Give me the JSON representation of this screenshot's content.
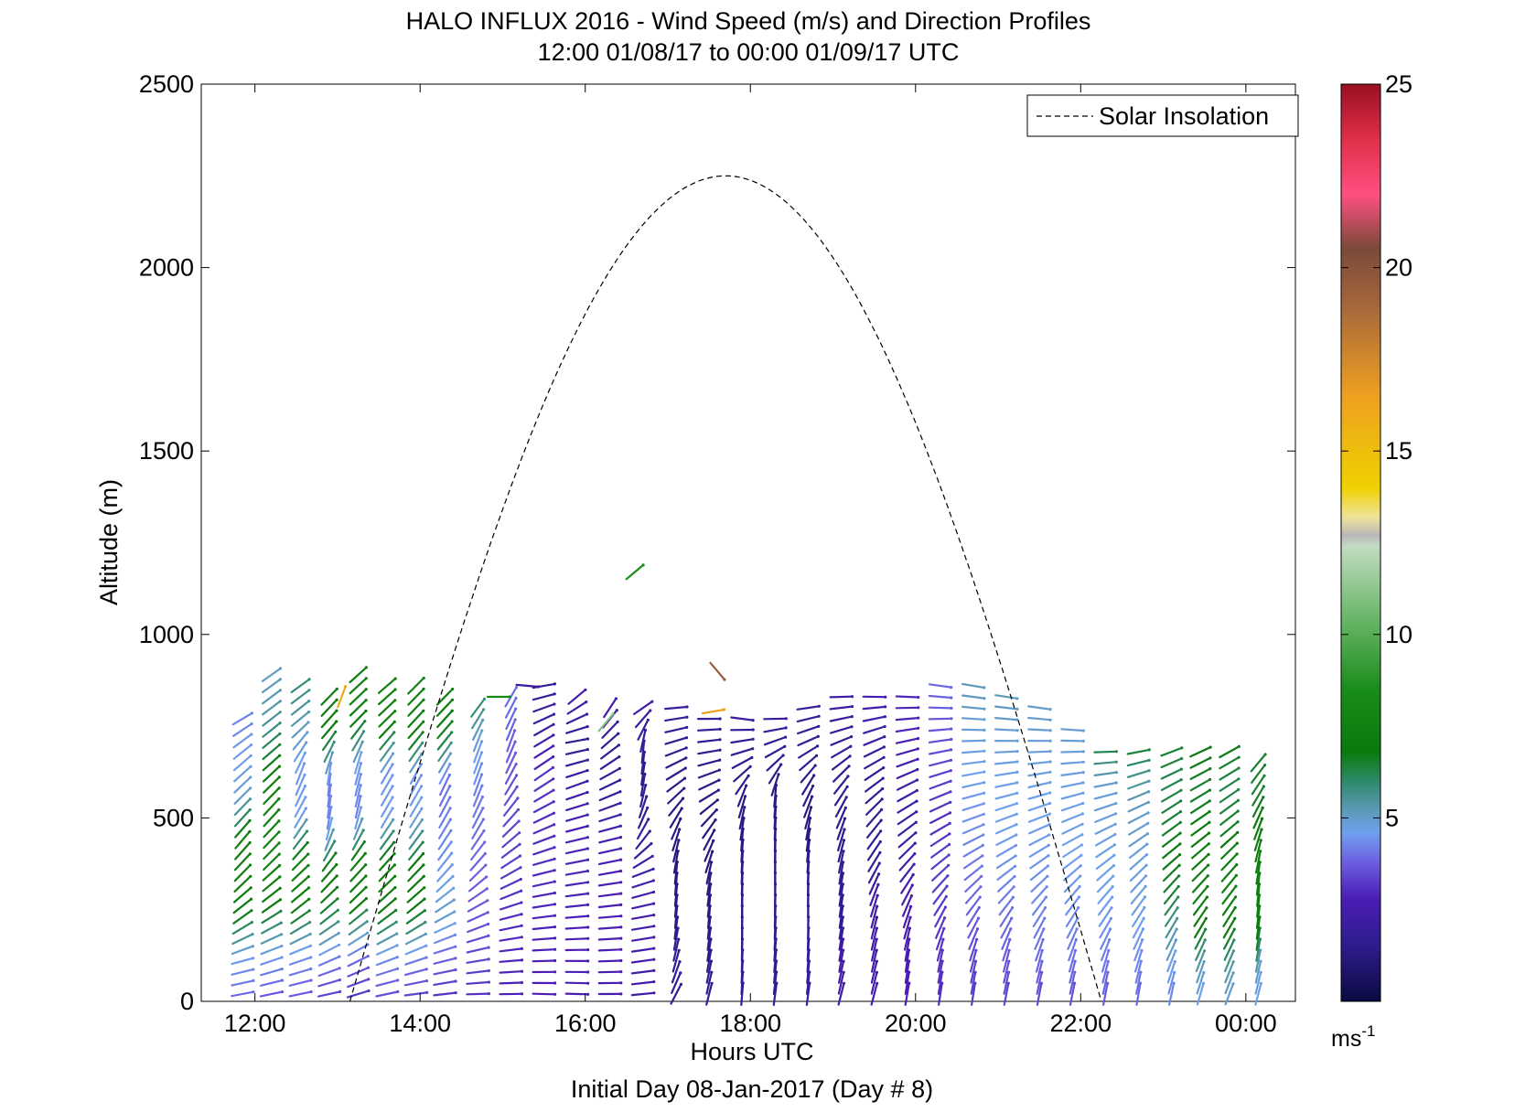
{
  "chart_data": {
    "type": "wind-barb-profile",
    "title": "HALO INFLUX 2016 - Wind Speed (m/s) and Direction Profiles",
    "subtitle": "12:00 01/08/17 to 00:00 01/09/17  UTC",
    "xlabel": "Hours UTC",
    "ylabel": "Altitude (m)",
    "footer": "Initial Day 08-Jan-2017 (Day # 8)",
    "xlim_hours": [
      11.35,
      24.6
    ],
    "ylim": [
      0,
      2500
    ],
    "x_ticks": [
      {
        "h": 12,
        "label": "12:00"
      },
      {
        "h": 14,
        "label": "14:00"
      },
      {
        "h": 16,
        "label": "16:00"
      },
      {
        "h": 18,
        "label": "18:00"
      },
      {
        "h": 20,
        "label": "20:00"
      },
      {
        "h": 22,
        "label": "22:00"
      },
      {
        "h": 24,
        "label": "00:00"
      }
    ],
    "y_ticks": [
      0,
      500,
      1000,
      1500,
      2000,
      2500
    ],
    "legend": {
      "label": "Solar Insolation",
      "position": "top-right",
      "style": "dashed"
    },
    "solar_insolation": {
      "rise_h": 13.15,
      "set_h": 22.25,
      "peak_h": 17.7,
      "peak_alt": 2250
    },
    "colorbar": {
      "min": 0,
      "max": 25,
      "ticks": [
        5,
        10,
        15,
        20,
        25
      ],
      "unit": "ms",
      "unit_exp": "-1",
      "stops": [
        {
          "v": 0,
          "c": "#0a0a40"
        },
        {
          "v": 1.5,
          "c": "#2d1c8c"
        },
        {
          "v": 2.8,
          "c": "#4b1db6"
        },
        {
          "v": 3.8,
          "c": "#6b60e0"
        },
        {
          "v": 4.6,
          "c": "#6fa0ef"
        },
        {
          "v": 5.2,
          "c": "#5c9ab8"
        },
        {
          "v": 6.0,
          "c": "#2e8a6a"
        },
        {
          "v": 6.8,
          "c": "#0a7a0a"
        },
        {
          "v": 8.5,
          "c": "#1a8c1a"
        },
        {
          "v": 10.5,
          "c": "#6cb86c"
        },
        {
          "v": 12.4,
          "c": "#c2dcc2"
        },
        {
          "v": 12.7,
          "c": "#b8b8b8"
        },
        {
          "v": 13.2,
          "c": "#efe39a"
        },
        {
          "v": 14.0,
          "c": "#f0d200"
        },
        {
          "v": 16.5,
          "c": "#eda020"
        },
        {
          "v": 19.0,
          "c": "#a5663c"
        },
        {
          "v": 20.5,
          "c": "#7a4a3a"
        },
        {
          "v": 22.0,
          "c": "#ff4f80"
        },
        {
          "v": 23.5,
          "c": "#e0304a"
        },
        {
          "v": 25,
          "c": "#9a0e22"
        }
      ]
    },
    "columns": [
      {
        "h": 11.85,
        "top": 780,
        "spd": [
          3.8,
          4.5,
          6.5,
          7.5,
          7.2,
          5.0,
          4.6,
          4.2
        ],
        "dir": [
          100,
          105,
          125,
          135,
          140,
          135,
          130,
          120
        ]
      },
      {
        "h": 12.2,
        "top": 900,
        "spd": [
          3.5,
          4.6,
          6.8,
          7.6,
          7.4,
          6.8,
          5.5,
          5.0
        ],
        "dir": [
          100,
          110,
          125,
          135,
          138,
          132,
          128,
          125
        ]
      },
      {
        "h": 12.55,
        "top": 880,
        "spd": [
          3.6,
          4.4,
          6.9,
          7.4,
          4.6,
          4.5,
          5.2,
          6.0
        ],
        "dir": [
          100,
          110,
          128,
          135,
          150,
          160,
          130,
          125
        ]
      },
      {
        "h": 12.9,
        "top": 850,
        "spd": [
          3.2,
          4.2,
          6.5,
          7.0,
          4.3,
          4.2,
          6.8,
          7.2
        ],
        "dir": [
          100,
          115,
          130,
          140,
          170,
          175,
          140,
          135
        ]
      },
      {
        "h": 13.25,
        "top": 900,
        "spd": [
          3.0,
          4.0,
          6.8,
          7.2,
          4.2,
          4.5,
          7.0,
          7.5
        ],
        "dir": [
          105,
          118,
          132,
          140,
          168,
          165,
          135,
          132
        ]
      },
      {
        "h": 13.6,
        "top": 880,
        "spd": [
          3.4,
          4.4,
          7.0,
          7.3,
          4.6,
          4.4,
          7.2,
          7.5
        ],
        "dir": [
          100,
          112,
          130,
          138,
          150,
          150,
          135,
          130
        ]
      },
      {
        "h": 13.95,
        "top": 860,
        "spd": [
          3.2,
          4.2,
          6.8,
          7.0,
          4.8,
          4.3,
          7.2,
          7.4
        ],
        "dir": [
          95,
          110,
          128,
          138,
          148,
          152,
          138,
          135
        ]
      },
      {
        "h": 14.3,
        "top": 840,
        "spd": [
          3.0,
          3.8,
          5.0,
          4.5,
          4.2,
          4.0,
          6.5,
          7.2
        ],
        "dir": [
          95,
          105,
          120,
          140,
          150,
          155,
          140,
          135
        ]
      },
      {
        "h": 14.7,
        "top": 820,
        "spd": [
          3.0,
          3.4,
          3.6,
          3.8,
          4.0,
          4.2,
          4.8,
          6.0
        ],
        "dir": [
          90,
          100,
          115,
          135,
          150,
          160,
          160,
          140
        ]
      },
      {
        "h": 15.1,
        "top": 830,
        "spd": [
          2.8,
          2.9,
          3.0,
          3.2,
          3.4,
          3.6,
          3.8,
          4.0
        ],
        "dir": [
          90,
          95,
          105,
          120,
          135,
          150,
          160,
          150
        ]
      },
      {
        "h": 15.5,
        "top": 860,
        "spd": [
          2.8,
          2.8,
          2.9,
          3.0,
          3.0,
          3.1,
          2.2,
          1.8
        ],
        "dir": [
          88,
          92,
          98,
          105,
          115,
          125,
          120,
          100
        ]
      },
      {
        "h": 15.9,
        "top": 830,
        "spd": [
          2.7,
          2.8,
          2.8,
          2.9,
          2.8,
          2.2,
          1.6,
          2.5
        ],
        "dir": [
          88,
          90,
          95,
          100,
          105,
          110,
          100,
          130
        ]
      },
      {
        "h": 16.3,
        "top": 820,
        "spd": [
          2.6,
          2.7,
          2.8,
          2.8,
          2.5,
          1.9,
          1.8,
          2.6
        ],
        "dir": [
          90,
          92,
          95,
          100,
          105,
          115,
          130,
          150
        ]
      },
      {
        "h": 16.7,
        "top": 810,
        "spd": [
          2.2,
          2.4,
          2.5,
          2.4,
          2.0,
          1.6,
          1.8,
          2.5
        ],
        "dir": [
          95,
          98,
          100,
          110,
          150,
          170,
          175,
          120
        ]
      },
      {
        "h": 17.1,
        "top": 800,
        "spd": [
          1.8,
          1.6,
          1.4,
          1.2,
          1.2,
          1.4,
          1.6,
          2.0
        ],
        "dir": [
          150,
          165,
          175,
          175,
          160,
          130,
          110,
          95
        ]
      },
      {
        "h": 17.5,
        "top": 790,
        "spd": [
          1.8,
          1.5,
          1.4,
          1.2,
          1.2,
          1.3,
          1.5,
          2.0
        ],
        "dir": [
          165,
          170,
          175,
          170,
          150,
          120,
          100,
          88
        ]
      },
      {
        "h": 17.9,
        "top": 780,
        "spd": [
          1.8,
          1.6,
          1.4,
          1.3,
          1.3,
          1.4,
          1.6,
          2.2
        ],
        "dir": [
          175,
          178,
          180,
          178,
          175,
          160,
          110,
          80
        ]
      },
      {
        "h": 18.3,
        "top": 790,
        "spd": [
          2.0,
          1.7,
          1.5,
          1.4,
          1.3,
          1.4,
          1.6,
          2.2
        ],
        "dir": [
          172,
          175,
          178,
          180,
          178,
          175,
          120,
          85
        ]
      },
      {
        "h": 18.7,
        "top": 820,
        "spd": [
          2.2,
          1.9,
          1.6,
          1.4,
          1.3,
          1.4,
          1.8,
          2.2
        ],
        "dir": [
          172,
          176,
          180,
          178,
          170,
          150,
          115,
          95
        ]
      },
      {
        "h": 19.1,
        "top": 840,
        "spd": [
          2.4,
          2.2,
          1.8,
          1.6,
          1.5,
          1.6,
          2.0,
          2.3
        ],
        "dir": [
          165,
          170,
          172,
          170,
          160,
          140,
          110,
          90
        ]
      },
      {
        "h": 19.5,
        "top": 850,
        "spd": [
          2.6,
          2.4,
          2.2,
          2.0,
          1.8,
          1.8,
          2.2,
          2.6
        ],
        "dir": [
          165,
          168,
          165,
          150,
          140,
          125,
          110,
          85
        ]
      },
      {
        "h": 19.9,
        "top": 850,
        "spd": [
          2.8,
          2.7,
          2.6,
          2.4,
          2.2,
          2.4,
          2.8,
          3.0
        ],
        "dir": [
          170,
          172,
          160,
          140,
          125,
          115,
          100,
          85
        ]
      },
      {
        "h": 20.3,
        "top": 860,
        "spd": [
          3.0,
          3.1,
          3.2,
          3.3,
          3.0,
          3.3,
          3.6,
          3.9
        ],
        "dir": [
          172,
          168,
          150,
          130,
          118,
          108,
          95,
          82
        ]
      },
      {
        "h": 20.7,
        "top": 870,
        "spd": [
          3.2,
          3.4,
          3.8,
          4.1,
          4.4,
          4.6,
          4.9,
          5.2
        ],
        "dir": [
          172,
          165,
          145,
          125,
          110,
          100,
          88,
          80
        ]
      },
      {
        "h": 21.1,
        "top": 850,
        "spd": [
          3.3,
          3.7,
          4.0,
          4.4,
          4.6,
          4.7,
          4.9,
          5.2
        ],
        "dir": [
          170,
          165,
          145,
          125,
          112,
          100,
          88,
          80
        ]
      },
      {
        "h": 21.5,
        "top": 800,
        "spd": [
          3.4,
          3.9,
          4.2,
          4.4,
          4.5,
          4.7,
          4.8,
          5.0
        ],
        "dir": [
          170,
          165,
          148,
          130,
          115,
          105,
          92,
          82
        ]
      },
      {
        "h": 21.9,
        "top": 750,
        "spd": [
          3.5,
          4.0,
          4.3,
          4.5,
          4.6,
          4.7,
          4.8,
          4.9
        ],
        "dir": [
          170,
          165,
          150,
          135,
          120,
          108,
          95,
          85
        ]
      },
      {
        "h": 22.3,
        "top": 700,
        "spd": [
          3.6,
          4.1,
          4.4,
          4.6,
          4.7,
          4.8,
          5.0,
          6.5
        ],
        "dir": [
          170,
          165,
          150,
          138,
          125,
          112,
          100,
          90
        ]
      },
      {
        "h": 22.7,
        "top": 690,
        "spd": [
          3.8,
          4.3,
          4.6,
          4.8,
          4.8,
          5.0,
          5.4,
          6.5
        ],
        "dir": [
          172,
          165,
          152,
          140,
          130,
          118,
          110,
          100
        ]
      },
      {
        "h": 23.1,
        "top": 690,
        "spd": [
          4.2,
          4.6,
          5.5,
          6.5,
          6.8,
          6.5,
          6.2,
          6.5
        ],
        "dir": [
          170,
          160,
          150,
          140,
          130,
          125,
          118,
          110
        ]
      },
      {
        "h": 23.45,
        "top": 680,
        "spd": [
          4.5,
          5.2,
          6.8,
          7.2,
          7.0,
          6.8,
          6.5,
          6.8
        ],
        "dir": [
          165,
          160,
          150,
          140,
          132,
          125,
          120,
          115
        ]
      },
      {
        "h": 23.8,
        "top": 700,
        "spd": [
          4.8,
          5.5,
          7.0,
          7.4,
          7.0,
          6.5,
          6.2,
          6.8
        ],
        "dir": [
          160,
          158,
          150,
          142,
          135,
          128,
          122,
          118
        ]
      },
      {
        "h": 24.15,
        "top": 650,
        "spd": [
          4.5,
          5.0,
          6.8,
          7.2,
          7.4,
          7.0,
          6.5,
          6.5
        ],
        "dir": [
          165,
          168,
          172,
          175,
          170,
          160,
          150,
          140
        ]
      }
    ],
    "extras": [
      {
        "h": 16.6,
        "alt": 1170,
        "spd": 8.5,
        "dir": 130
      },
      {
        "h": 17.6,
        "alt": 900,
        "spd": 19.5,
        "dir": 40
      },
      {
        "h": 17.55,
        "alt": 790,
        "spd": 16.5,
        "dir": 100
      },
      {
        "h": 15.3,
        "alt": 860,
        "spd": 2.0,
        "dir": 85
      },
      {
        "h": 14.95,
        "alt": 830,
        "spd": 8.0,
        "dir": 90
      },
      {
        "h": 13.05,
        "alt": 830,
        "spd": 16.0,
        "dir": 160
      },
      {
        "h": 16.25,
        "alt": 760,
        "spd": 11.0,
        "dir": 140
      }
    ]
  }
}
